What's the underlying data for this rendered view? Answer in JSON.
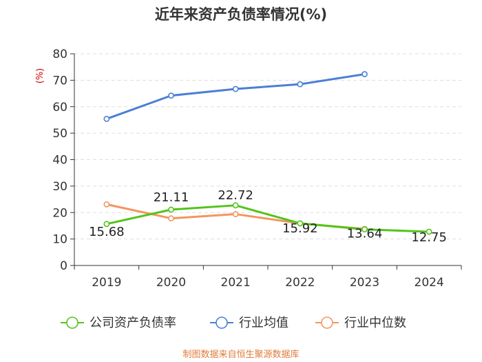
{
  "chart_data": {
    "type": "line",
    "title": "近年来资产负债率情况(%)",
    "ylabel": "(%)",
    "xlabel": "",
    "ylim": [
      0,
      80
    ],
    "yticks": [
      0,
      10,
      20,
      30,
      40,
      50,
      60,
      70,
      80
    ],
    "grid": true,
    "legend_position": "bottom",
    "categories": [
      "2019",
      "2020",
      "2021",
      "2022",
      "2023",
      "2024"
    ],
    "series": [
      {
        "name": "公司资产负债率",
        "color": "#52c41a",
        "values": [
          15.68,
          21.11,
          22.72,
          15.92,
          13.64,
          12.75
        ],
        "labels": [
          "15.68",
          "21.11",
          "22.72",
          "15.92",
          "13.64",
          "12.75"
        ]
      },
      {
        "name": "行业均值",
        "color": "#4a7fd6",
        "values": [
          55.4,
          64.2,
          66.7,
          68.5,
          72.3,
          null
        ]
      },
      {
        "name": "行业中位数",
        "color": "#f4955e",
        "values": [
          23.1,
          17.8,
          19.4,
          15.9,
          13.8,
          null
        ]
      }
    ]
  },
  "colors": {
    "axis_label": "#cc0000",
    "source_text": "#e07b39",
    "grid": "#dddddd"
  },
  "source": "制图数据来自恒生聚源数据库"
}
